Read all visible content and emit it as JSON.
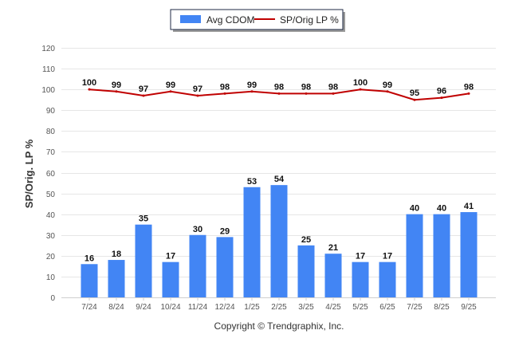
{
  "chart_data": {
    "type": "bar",
    "categories": [
      "7/24",
      "8/24",
      "9/24",
      "10/24",
      "11/24",
      "12/24",
      "1/25",
      "2/25",
      "3/25",
      "4/25",
      "5/25",
      "6/25",
      "7/25",
      "8/25",
      "9/25"
    ],
    "series": [
      {
        "name": "Avg CDOM",
        "type": "bar",
        "color": "#4285f4",
        "values": [
          16,
          18,
          35,
          17,
          30,
          29,
          53,
          54,
          25,
          21,
          17,
          17,
          40,
          40,
          41
        ]
      },
      {
        "name": "SP/Orig LP %",
        "type": "line",
        "color": "#c00000",
        "values": [
          100,
          99,
          97,
          99,
          97,
          98,
          99,
          98,
          98,
          98,
          100,
          99,
          95,
          96,
          98
        ]
      }
    ],
    "title": "",
    "xlabel": "",
    "ylabel": "SP/Orig. LP %",
    "ylim": [
      0,
      120
    ],
    "yticks": [
      0,
      10,
      20,
      30,
      40,
      50,
      60,
      70,
      80,
      90,
      100,
      110,
      120
    ],
    "grid": true,
    "legend_position": "top-center",
    "copyright": "Copyright © Trendgraphix, Inc."
  }
}
